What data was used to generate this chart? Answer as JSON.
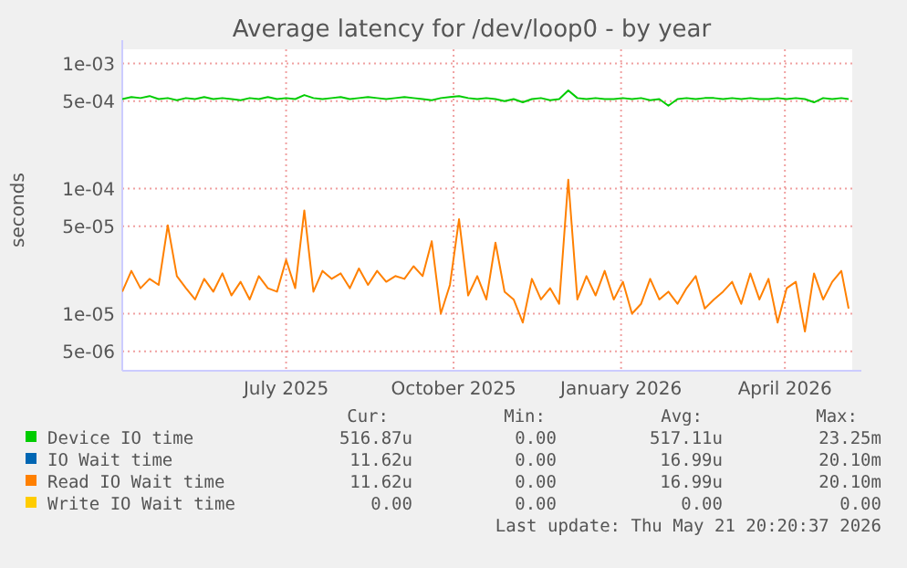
{
  "chart_data": {
    "type": "line",
    "title": "Average latency for /dev/loop0 - by year",
    "ylabel": "seconds",
    "log": "y",
    "grid": true,
    "legend": "bottom",
    "x": [
      "2025-04-02",
      "2025-04-07",
      "2025-04-12",
      "2025-04-17",
      "2025-04-22",
      "2025-04-27",
      "2025-05-02",
      "2025-05-07",
      "2025-05-12",
      "2025-05-17",
      "2025-05-22",
      "2025-05-27",
      "2025-06-01",
      "2025-06-06",
      "2025-06-11",
      "2025-06-16",
      "2025-06-21",
      "2025-06-26",
      "2025-07-01",
      "2025-07-06",
      "2025-07-11",
      "2025-07-16",
      "2025-07-21",
      "2025-07-26",
      "2025-07-31",
      "2025-08-05",
      "2025-08-10",
      "2025-08-15",
      "2025-08-20",
      "2025-08-25",
      "2025-08-30",
      "2025-09-04",
      "2025-09-09",
      "2025-09-14",
      "2025-09-19",
      "2025-09-24",
      "2025-09-29",
      "2025-10-04",
      "2025-10-09",
      "2025-10-14",
      "2025-10-19",
      "2025-10-24",
      "2025-10-29",
      "2025-11-03",
      "2025-11-08",
      "2025-11-13",
      "2025-11-18",
      "2025-11-23",
      "2025-11-28",
      "2025-12-03",
      "2025-12-08",
      "2025-12-13",
      "2025-12-18",
      "2025-12-23",
      "2025-12-28",
      "2026-01-02",
      "2026-01-07",
      "2026-01-12",
      "2026-01-17",
      "2026-01-22",
      "2026-01-27",
      "2026-02-01",
      "2026-02-06",
      "2026-02-11",
      "2026-02-16",
      "2026-02-21",
      "2026-02-26",
      "2026-03-03",
      "2026-03-08",
      "2026-03-13",
      "2026-03-18",
      "2026-03-23",
      "2026-03-28",
      "2026-04-02",
      "2026-04-07",
      "2026-04-12",
      "2026-04-17",
      "2026-04-22",
      "2026-04-27",
      "2026-05-02",
      "2026-05-06"
    ],
    "xlim": [
      "2025-04-02",
      "2026-05-08"
    ],
    "xticks": [
      {
        "value": "2025-07-01",
        "label": "July 2025"
      },
      {
        "value": "2025-10-01",
        "label": "October 2025"
      },
      {
        "value": "2026-01-01",
        "label": "January 2026"
      },
      {
        "value": "2026-04-01",
        "label": "April 2026"
      }
    ],
    "ylim": [
      3.5e-06,
      0.0013
    ],
    "yticks": [
      {
        "value": 0.001,
        "label": "1e-03"
      },
      {
        "value": 0.0005,
        "label": "5e-04"
      },
      {
        "value": 0.0001,
        "label": "1e-04"
      },
      {
        "value": 5e-05,
        "label": "5e-05"
      },
      {
        "value": 1e-05,
        "label": "1e-05"
      },
      {
        "value": 5e-06,
        "label": "5e-06"
      }
    ],
    "series": [
      {
        "name": "Device IO time",
        "color": "#00cc00",
        "values": [
          0.00052,
          0.00054,
          0.00053,
          0.00055,
          0.00052,
          0.00053,
          0.00051,
          0.00053,
          0.00052,
          0.00054,
          0.00052,
          0.00053,
          0.00052,
          0.00051,
          0.00053,
          0.00052,
          0.00054,
          0.00052,
          0.00053,
          0.00052,
          0.00056,
          0.00053,
          0.00052,
          0.00053,
          0.00054,
          0.00052,
          0.00053,
          0.00054,
          0.00053,
          0.00052,
          0.00053,
          0.00054,
          0.00053,
          0.00052,
          0.00051,
          0.00053,
          0.00054,
          0.00055,
          0.00053,
          0.00052,
          0.00053,
          0.00052,
          0.0005,
          0.00052,
          0.00049,
          0.00052,
          0.00053,
          0.00051,
          0.00052,
          0.00061,
          0.00053,
          0.00052,
          0.00053,
          0.00052,
          0.00052,
          0.00053,
          0.00052,
          0.00053,
          0.00051,
          0.00052,
          0.00046,
          0.00052,
          0.00053,
          0.00052,
          0.00053,
          0.00053,
          0.00052,
          0.00053,
          0.00052,
          0.00053,
          0.00052,
          0.00052,
          0.00053,
          0.00052,
          0.00053,
          0.00052,
          0.00049,
          0.00053,
          0.00052,
          0.00053,
          0.00052
        ]
      },
      {
        "name": "IO Wait time",
        "color": "#0066b3",
        "values": [
          null,
          null,
          null,
          null,
          null,
          null,
          null,
          null,
          null,
          null,
          null,
          null,
          null,
          null,
          null,
          null,
          null,
          null,
          null,
          null,
          null,
          null,
          null,
          null,
          null,
          null,
          null,
          null,
          null,
          null,
          null,
          null,
          null,
          null,
          null,
          null,
          null,
          null,
          null,
          null,
          null,
          null,
          null,
          null,
          null,
          null,
          null,
          null,
          null,
          null,
          null,
          null,
          null,
          null,
          null,
          null,
          null,
          null,
          null,
          null,
          null,
          null,
          null,
          null,
          null,
          null,
          null,
          null,
          null,
          null,
          null,
          null,
          null,
          null,
          null,
          null,
          null,
          null,
          null,
          null,
          null
        ]
      },
      {
        "name": "Read IO Wait time",
        "color": "#ff8000",
        "values": [
          1.5e-05,
          2.2e-05,
          1.6e-05,
          1.9e-05,
          1.7e-05,
          5.1e-05,
          2e-05,
          1.6e-05,
          1.3e-05,
          1.9e-05,
          1.5e-05,
          2.1e-05,
          1.4e-05,
          1.8e-05,
          1.3e-05,
          2e-05,
          1.6e-05,
          1.5e-05,
          2.7e-05,
          1.6e-05,
          6.7e-05,
          1.5e-05,
          2.2e-05,
          1.9e-05,
          2.1e-05,
          1.6e-05,
          2.3e-05,
          1.7e-05,
          2.2e-05,
          1.8e-05,
          2e-05,
          1.9e-05,
          2.4e-05,
          2e-05,
          3.8e-05,
          1e-05,
          1.7e-05,
          5.7e-05,
          1.4e-05,
          2e-05,
          1.3e-05,
          3.7e-05,
          1.5e-05,
          1.3e-05,
          8.5e-06,
          1.9e-05,
          1.3e-05,
          1.6e-05,
          1.2e-05,
          0.000118,
          1.3e-05,
          2e-05,
          1.4e-05,
          2.2e-05,
          1.3e-05,
          1.8e-05,
          1e-05,
          1.2e-05,
          1.9e-05,
          1.3e-05,
          1.5e-05,
          1.2e-05,
          1.6e-05,
          2e-05,
          1.1e-05,
          1.3e-05,
          1.5e-05,
          1.8e-05,
          1.2e-05,
          2.1e-05,
          1.3e-05,
          1.9e-05,
          8.5e-06,
          1.6e-05,
          1.8e-05,
          7.2e-06,
          2.1e-05,
          1.3e-05,
          1.8e-05,
          2.2e-05,
          1.1e-05
        ]
      },
      {
        "name": "Write IO Wait time",
        "color": "#ffcc00",
        "values": [
          null,
          null,
          null,
          null,
          null,
          null,
          null,
          null,
          null,
          null,
          null,
          null,
          null,
          null,
          null,
          null,
          null,
          null,
          null,
          null,
          null,
          null,
          null,
          null,
          null,
          null,
          null,
          null,
          null,
          null,
          null,
          null,
          null,
          null,
          null,
          null,
          null,
          null,
          null,
          null,
          null,
          null,
          null,
          null,
          null,
          null,
          null,
          null,
          null,
          null,
          null,
          null,
          null,
          null,
          null,
          null,
          null,
          null,
          null,
          null,
          null,
          null,
          null,
          null,
          null,
          null,
          null,
          null,
          null,
          null,
          null,
          null,
          null,
          null,
          null,
          null,
          null,
          null,
          null,
          null,
          null
        ]
      }
    ],
    "annotations": [
      "Cur:",
      "Min:",
      "Avg:",
      "Max:",
      "516.87u",
      "0.00",
      "517.11u",
      "23.25m",
      "11.62u",
      "0.00",
      "16.99u",
      "20.10m",
      "11.62u",
      "0.00",
      "16.99u",
      "20.10m",
      "0.00",
      "0.00",
      "0.00",
      "0.00",
      "Last update: Thu May 21 20:20:37 2026"
    ]
  }
}
